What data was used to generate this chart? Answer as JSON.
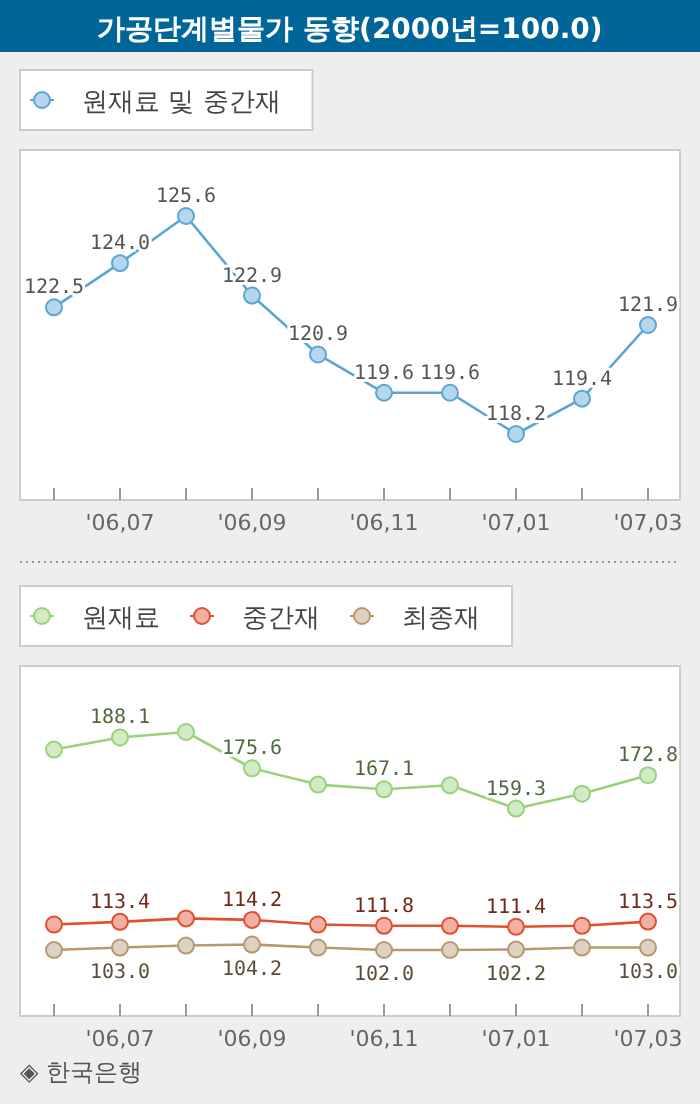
{
  "chart_data": [
    {
      "type": "line",
      "title": "가공단계별물가 동향(2000년=100.0)",
      "categories": [
        null,
        "'06,07",
        null,
        "'06,09",
        null,
        "'06,11",
        null,
        "'07,01",
        null,
        "'07,03"
      ],
      "series": [
        {
          "name": "원재료 및 중간재",
          "color": "#5aa5d6",
          "values": [
            122.5,
            124.0,
            125.6,
            122.9,
            120.9,
            119.6,
            119.6,
            118.2,
            119.4,
            121.9
          ],
          "value_labels": [
            "122.5",
            "124.0",
            "125.6",
            "122.9",
            "120.9",
            "119.6",
            "119.6",
            "118.2",
            "119.4",
            "121.9"
          ]
        }
      ],
      "marker": "circle",
      "legend": "top left"
    },
    {
      "type": "line",
      "categories": [
        null,
        "'06,07",
        null,
        "'06,09",
        null,
        "'06,11",
        null,
        "'07,01",
        null,
        "'07,03"
      ],
      "series": [
        {
          "name": "원재료",
          "color": "#99d27a",
          "values": [
            183.2,
            188.1,
            190.3,
            175.6,
            169.0,
            167.1,
            168.7,
            159.3,
            165.3,
            172.8
          ],
          "value_labels": [
            null,
            "188.1",
            null,
            "175.6",
            null,
            "167.1",
            null,
            "159.3",
            null,
            "172.8"
          ]
        },
        {
          "name": "중간재",
          "color": "#e0502e",
          "values": [
            112.3,
            113.4,
            114.8,
            114.2,
            112.3,
            111.8,
            111.8,
            111.4,
            111.8,
            113.5
          ],
          "value_labels": [
            null,
            "113.4",
            null,
            "114.2",
            null,
            "111.8",
            null,
            "111.4",
            null,
            "113.5"
          ]
        },
        {
          "name": "최종재",
          "color": "#b89870",
          "values": [
            102.0,
            103.0,
            103.8,
            104.2,
            103.0,
            102.0,
            102.0,
            102.2,
            103.0,
            103.0
          ],
          "value_labels": [
            null,
            "103.0",
            null,
            "104.2",
            null,
            "102.0",
            null,
            "102.2",
            null,
            "103.0"
          ]
        }
      ],
      "marker": "circle",
      "legend": "top left",
      "annotations": [
        "◈ 한국은행"
      ]
    }
  ]
}
